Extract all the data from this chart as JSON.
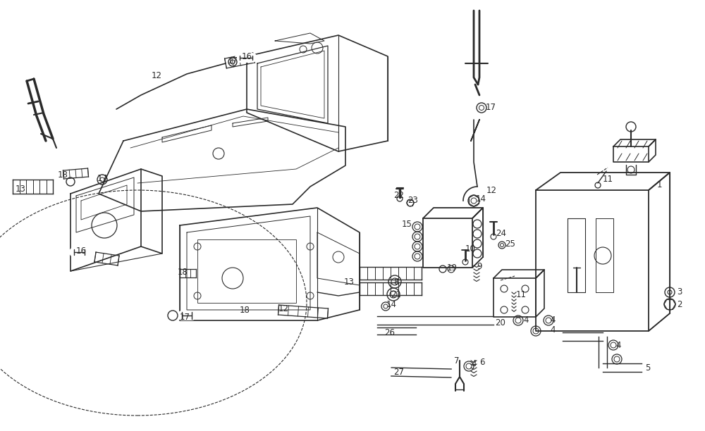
{
  "bg_color": "#ffffff",
  "line_color": "#2a2a2a",
  "fig_width": 10.0,
  "fig_height": 6.12,
  "dpi": 100
}
